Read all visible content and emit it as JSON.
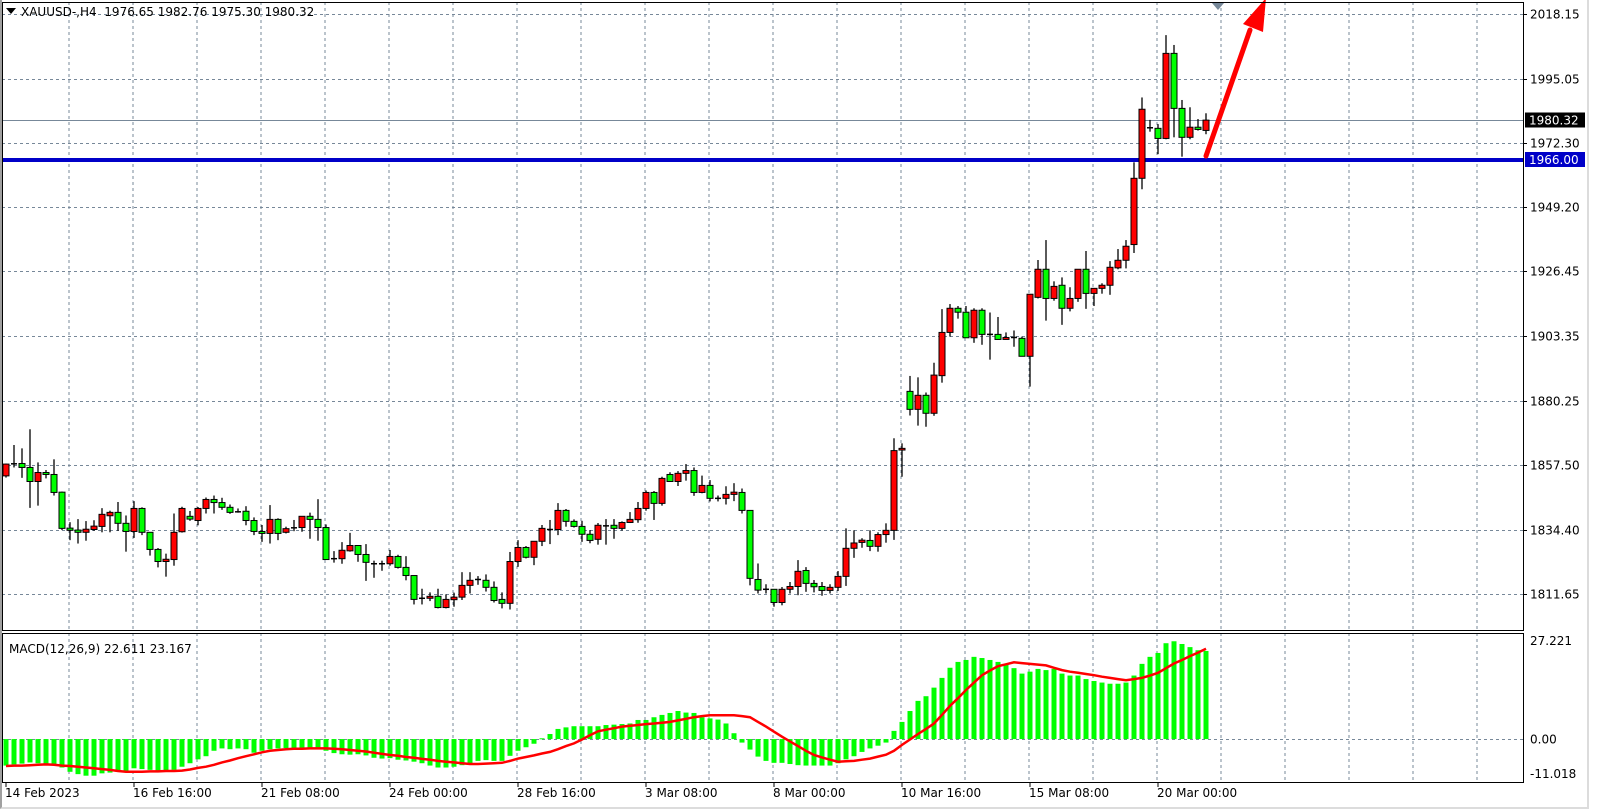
{
  "header": {
    "symbol_timeframe": "XAUUSD-,H4",
    "open": "1976.65",
    "high": "1982.76",
    "low": "1975.30",
    "close": "1980.32"
  },
  "colors": {
    "bull_candle": "#ff0000",
    "bear_candle": "#00ff00",
    "support_line": "#0000c8",
    "arrow": "#ff0000",
    "macd_histogram": "#00ff00",
    "signal_line": "#ff0000",
    "grid": "#778899"
  },
  "chart_data": [
    {
      "type": "candlestick",
      "symbol": "XAUUSD-",
      "timeframe": "H4",
      "ylim": [
        1798.7,
        2022.4
      ],
      "grid": true,
      "y_tick_labels": [
        "2018.15",
        "1995.05",
        "1972.30",
        "1949.20",
        "1926.45",
        "1903.35",
        "1880.25",
        "1857.50",
        "1834.40",
        "1811.65"
      ],
      "x_tick_labels": [
        "14 Feb 2023",
        "16 Feb 16:00",
        "21 Feb 08:00",
        "24 Feb 00:00",
        "28 Feb 16:00",
        "3 Mar 08:00",
        "8 Mar 00:00",
        "10 Mar 16:00",
        "15 Mar 08:00",
        "20 Mar 00:00"
      ],
      "current_price_label": "1980.32",
      "current_price": 1980.32,
      "horizontal_line_label": "1966.00",
      "horizontal_line": 1966.0,
      "annotation": "red arrow pointing up-right from last candle",
      "ohlc": [
        [
          1853.6,
          1858,
          1853,
          1857.8
        ],
        [
          1857.9,
          1864.6,
          1856.6,
          1857.9
        ],
        [
          1858.0,
          1863.4,
          1852.9,
          1856.6
        ],
        [
          1856.6,
          1870.2,
          1842.2,
          1851.6
        ],
        [
          1851.6,
          1858.4,
          1843,
          1854.8
        ],
        [
          1854.8,
          1855.7,
          1852.7,
          1854.1
        ],
        [
          1854.1,
          1859.5,
          1846.6,
          1847.7
        ],
        [
          1847.8,
          1848,
          1834.3,
          1834.9
        ],
        [
          1835,
          1837.1,
          1830.7,
          1834.2
        ],
        [
          1834.3,
          1838.2,
          1829.5,
          1833.5
        ],
        [
          1833.5,
          1837.5,
          1830.5,
          1834.6
        ],
        [
          1834.5,
          1837.8,
          1834,
          1835.7
        ],
        [
          1835.6,
          1842.1,
          1833.5,
          1839.9
        ],
        [
          1839.4,
          1841.2,
          1833.5,
          1840.6
        ],
        [
          1840.6,
          1844.3,
          1834,
          1836.7
        ],
        [
          1836.7,
          1839.5,
          1826.6,
          1833.8
        ],
        [
          1833.8,
          1844.6,
          1831.5,
          1842
        ],
        [
          1842,
          1842.4,
          1832.5,
          1833.5
        ],
        [
          1833.5,
          1833.5,
          1825.2,
          1827.4
        ],
        [
          1827.4,
          1827.9,
          1821,
          1823.1
        ],
        [
          1823.1,
          1825.9,
          1817.7,
          1823.9
        ],
        [
          1823.8,
          1840.2,
          1821.6,
          1833.5
        ],
        [
          1833.7,
          1842.6,
          1833.4,
          1842
        ],
        [
          1839.2,
          1841.1,
          1837.6,
          1838.2
        ],
        [
          1837.7,
          1842.5,
          1836,
          1842
        ],
        [
          1842,
          1845.9,
          1840.2,
          1845.2
        ],
        [
          1845.2,
          1846.6,
          1840.2,
          1844.1
        ],
        [
          1844.1,
          1845.8,
          1841.5,
          1842.4
        ],
        [
          1842.4,
          1843.4,
          1840.1,
          1840.6
        ],
        [
          1840.8,
          1842,
          1840.5,
          1840.8
        ],
        [
          1841,
          1842.8,
          1836,
          1837.7
        ],
        [
          1837.7,
          1838.8,
          1832.5,
          1833.8
        ],
        [
          1833.8,
          1836.1,
          1830.1,
          1833.1
        ],
        [
          1833.1,
          1843.2,
          1829.5,
          1838.1
        ],
        [
          1838.1,
          1838.5,
          1830.7,
          1833.1
        ],
        [
          1833.5,
          1835.5,
          1833.1,
          1834.8
        ],
        [
          1835.1,
          1837.9,
          1833.9,
          1835.1
        ],
        [
          1835.2,
          1839.2,
          1833.7,
          1839.2
        ],
        [
          1839.2,
          1840.5,
          1831.2,
          1838.1
        ],
        [
          1838.1,
          1845.3,
          1830.5,
          1835.2
        ],
        [
          1835.2,
          1836.3,
          1823.8,
          1823.8
        ],
        [
          1824.1,
          1826.8,
          1822.7,
          1824.1
        ],
        [
          1824.1,
          1830,
          1822.3,
          1827.1
        ],
        [
          1826.9,
          1833.3,
          1826.6,
          1828.8
        ],
        [
          1828.8,
          1828.8,
          1823,
          1825.6
        ],
        [
          1825.6,
          1829.3,
          1816.2,
          1822.8
        ],
        [
          1822.3,
          1823.4,
          1817.3,
          1822.3
        ],
        [
          1822.3,
          1823.4,
          1819.8,
          1822.3
        ],
        [
          1822.3,
          1827.2,
          1821.6,
          1824.9
        ],
        [
          1824.9,
          1825.5,
          1820.6,
          1821
        ],
        [
          1821,
          1825,
          1816.4,
          1818.1
        ],
        [
          1818.1,
          1818.1,
          1807.8,
          1809.6
        ],
        [
          1810,
          1813.4,
          1807.8,
          1810
        ],
        [
          1810,
          1812.1,
          1809,
          1810.7
        ],
        [
          1810.7,
          1813.4,
          1806.4,
          1806.7
        ],
        [
          1806.7,
          1811.4,
          1806.4,
          1809.6
        ],
        [
          1809.5,
          1812,
          1807,
          1810.4
        ],
        [
          1810.4,
          1819.3,
          1809.4,
          1814.6
        ],
        [
          1814.6,
          1819.3,
          1811.7,
          1816.4
        ],
        [
          1816.7,
          1817.9,
          1814.8,
          1816.7
        ],
        [
          1816.4,
          1818.5,
          1812.4,
          1813.9
        ],
        [
          1813.9,
          1816,
          1808.5,
          1809.2
        ],
        [
          1809.6,
          1812.1,
          1806.4,
          1808.2
        ],
        [
          1808.2,
          1826.5,
          1806,
          1823.1
        ],
        [
          1823.1,
          1830.7,
          1821.2,
          1828.1
        ],
        [
          1828.1,
          1828.6,
          1824.2,
          1824.6
        ],
        [
          1824.6,
          1830.3,
          1821.8,
          1830.3
        ],
        [
          1830.3,
          1836.1,
          1828.6,
          1834.9
        ],
        [
          1834.5,
          1837.9,
          1829.3,
          1834.5
        ],
        [
          1834.5,
          1843.9,
          1832.5,
          1841.3
        ],
        [
          1841.3,
          1841.8,
          1835.5,
          1837.4
        ],
        [
          1837.4,
          1838.1,
          1835.2,
          1835.6
        ],
        [
          1835.6,
          1837.6,
          1830.1,
          1832.8
        ],
        [
          1832.8,
          1834.3,
          1829.6,
          1830.6
        ],
        [
          1831,
          1836.8,
          1829.1,
          1836
        ],
        [
          1835.8,
          1838.2,
          1829.1,
          1835.8
        ],
        [
          1836,
          1838.2,
          1831.2,
          1834.9
        ],
        [
          1834.9,
          1837.4,
          1834.1,
          1837
        ],
        [
          1837,
          1840.7,
          1836.8,
          1838.1
        ],
        [
          1838,
          1844.3,
          1836.9,
          1842
        ],
        [
          1842,
          1848.4,
          1841.2,
          1847.7
        ],
        [
          1847.7,
          1848.2,
          1837.9,
          1843.8
        ],
        [
          1843.8,
          1853.3,
          1843,
          1852.7
        ],
        [
          1854.1,
          1854.9,
          1851.6,
          1851.6
        ],
        [
          1851.6,
          1855.3,
          1850,
          1854.5
        ],
        [
          1854.5,
          1857.8,
          1851.9,
          1855.5
        ],
        [
          1855.5,
          1856.6,
          1846.5,
          1847.7
        ],
        [
          1847.7,
          1853.7,
          1847.4,
          1850.2
        ],
        [
          1850.2,
          1852.1,
          1844.5,
          1845.6
        ],
        [
          1845.6,
          1846.6,
          1844.5,
          1845.6
        ],
        [
          1845.6,
          1849.9,
          1843.4,
          1847
        ],
        [
          1847,
          1851,
          1844.6,
          1847.8
        ],
        [
          1847.7,
          1849.1,
          1840.2,
          1841.3
        ],
        [
          1841.3,
          1841.3,
          1814.6,
          1817.1
        ],
        [
          1816.7,
          1822.4,
          1811.7,
          1812.9
        ],
        [
          1813.2,
          1815,
          1811.7,
          1813.2
        ],
        [
          1813.2,
          1813.2,
          1807,
          1808.5
        ],
        [
          1808.5,
          1814,
          1807.5,
          1813.2
        ],
        [
          1813.2,
          1815.8,
          1811.7,
          1814.2
        ],
        [
          1814.2,
          1823.6,
          1811.1,
          1819.6
        ],
        [
          1819.9,
          1821.1,
          1812.3,
          1815.3
        ],
        [
          1815.3,
          1816.5,
          1812.1,
          1814.1
        ],
        [
          1814.2,
          1815.8,
          1810.9,
          1812.8
        ],
        [
          1812.8,
          1815,
          1811.7,
          1813.9
        ],
        [
          1813.9,
          1819.7,
          1812.6,
          1817.8
        ],
        [
          1817.8,
          1834.9,
          1814.4,
          1827.8
        ],
        [
          1827.8,
          1834.2,
          1824.4,
          1829.7
        ],
        [
          1829.9,
          1831.4,
          1828,
          1830.7
        ],
        [
          1830.6,
          1834.2,
          1826.8,
          1828.5
        ],
        [
          1828.5,
          1833.5,
          1826.6,
          1832.7
        ],
        [
          1832.7,
          1836.7,
          1829.8,
          1834.2
        ],
        [
          1834.2,
          1867,
          1830.8,
          1862.6
        ],
        [
          1862.8,
          1865.2,
          1853.3,
          1863.4
        ],
        [
          1883.7,
          1889.2,
          1875.1,
          1877.3
        ],
        [
          1877.3,
          1888.7,
          1871.5,
          1882.3
        ],
        [
          1882.3,
          1883.3,
          1871.1,
          1875.9
        ],
        [
          1875.9,
          1893.9,
          1875,
          1889.5
        ],
        [
          1889.3,
          1913,
          1886.8,
          1904.7
        ],
        [
          1904.7,
          1914.8,
          1903.2,
          1913.3
        ],
        [
          1913.3,
          1914.1,
          1909.6,
          1911.9
        ],
        [
          1911.9,
          1914.1,
          1902.8,
          1902.8
        ],
        [
          1902.8,
          1913.3,
          1901,
          1912.6
        ],
        [
          1912.6,
          1913.3,
          1900.3,
          1904
        ],
        [
          1904,
          1911.8,
          1895,
          1904
        ],
        [
          1904,
          1910.2,
          1902.2,
          1902.2
        ],
        [
          1902.2,
          1904.7,
          1902.2,
          1902.9
        ],
        [
          1902.9,
          1905.4,
          1899.6,
          1902.9
        ],
        [
          1902.6,
          1903.2,
          1896.2,
          1896.2
        ],
        [
          1896.2,
          1918.3,
          1885.4,
          1918.3
        ],
        [
          1917.2,
          1930.5,
          1916.8,
          1927.2
        ],
        [
          1927.2,
          1937.6,
          1908.9,
          1916.8
        ],
        [
          1916.8,
          1922.9,
          1916,
          1921.1
        ],
        [
          1921.5,
          1924.3,
          1907.4,
          1913.3
        ],
        [
          1913.3,
          1920.8,
          1912.2,
          1916.8
        ],
        [
          1916.8,
          1927.2,
          1915.6,
          1927.2
        ],
        [
          1927.2,
          1933.7,
          1913.1,
          1918.6
        ],
        [
          1918.6,
          1920.4,
          1914.1,
          1920.4
        ],
        [
          1920.4,
          1922.2,
          1918.5,
          1921.5
        ],
        [
          1921.5,
          1930.1,
          1918.1,
          1927.9
        ],
        [
          1927.7,
          1934.4,
          1927.2,
          1930.4
        ],
        [
          1930.4,
          1937.6,
          1927.5,
          1935.4
        ],
        [
          1936,
          1965.3,
          1933,
          1959.6
        ],
        [
          1959.6,
          1988.4,
          1955.7,
          1984.2
        ],
        [
          1977.6,
          1980.4,
          1976.2,
          1977.6
        ],
        [
          1977.4,
          1978.9,
          1968.2,
          1973.8
        ],
        [
          1973.8,
          2010.6,
          1973.5,
          2004.1
        ],
        [
          2004.1,
          2007.1,
          1974.2,
          1984.5
        ],
        [
          1984.5,
          1987.5,
          1967.3,
          1974.2
        ],
        [
          1974.2,
          1984.9,
          1973.5,
          1977.8
        ],
        [
          1977.8,
          1980.7,
          1976.6,
          1977.0
        ],
        [
          1976.65,
          1982.76,
          1975.3,
          1980.32
        ]
      ]
    },
    {
      "type": "bar+line",
      "indicator_label": "MACD(12,26,9)",
      "macd_value": "22.611",
      "signal_value": "23.167",
      "ylim": [
        -11.018,
        27.221
      ],
      "y_tick_labels": [
        "27.221",
        "0.00",
        "-11.018"
      ],
      "histogram": [
        -6.8,
        -6.5,
        -6.3,
        -6.0,
        -6.2,
        -6.4,
        -6.5,
        -7.3,
        -8.4,
        -9.0,
        -9.4,
        -9.4,
        -8.8,
        -8.6,
        -8.4,
        -8.4,
        -7.5,
        -7.7,
        -7.9,
        -8.4,
        -8.4,
        -7.9,
        -7.1,
        -6.2,
        -5.2,
        -4.4,
        -3.0,
        -2.4,
        -2.6,
        -2.4,
        -2.6,
        -3.5,
        -3.0,
        -2.6,
        -2.4,
        -2.3,
        -2.3,
        -2.4,
        -2.5,
        -2.6,
        -3.0,
        -3.6,
        -3.9,
        -4.0,
        -3.9,
        -4.2,
        -4.8,
        -5.0,
        -4.9,
        -5.3,
        -5.5,
        -5.8,
        -6.2,
        -6.8,
        -7.3,
        -7.3,
        -7.1,
        -6.7,
        -6.2,
        -5.6,
        -5.4,
        -5.6,
        -5.6,
        -4.3,
        -3.0,
        -2.1,
        -1.2,
        0.2,
        1.3,
        2.6,
        3.0,
        3.3,
        3.3,
        3.3,
        3.3,
        3.6,
        3.7,
        3.85,
        4.0,
        4.9,
        4.9,
        5.6,
        6.2,
        6.7,
        7.2,
        6.8,
        6.7,
        5.6,
        5.3,
        5.0,
        4.0,
        1.5,
        -0.9,
        -2.7,
        -4.5,
        -5.6,
        -6.1,
        -6.1,
        -6.4,
        -6.7,
        -6.8,
        -6.8,
        -6.8,
        -6.8,
        -6.2,
        -5.2,
        -4.4,
        -3.3,
        -2.4,
        -1.7,
        -0.9,
        2.1,
        4.4,
        7.2,
        9.8,
        11.0,
        13.2,
        15.7,
        18.3,
        19.8,
        20.3,
        21.1,
        20.8,
        20.3,
        19.8,
        19.2,
        18.2,
        16.8,
        17.3,
        18.0,
        17.7,
        18.0,
        16.8,
        16.3,
        16.3,
        15.4,
        14.9,
        14.5,
        14.2,
        14.2,
        14.5,
        16.3,
        19.3,
        21.1,
        22.1,
        24.6,
        25.1,
        24.4,
        23.6,
        22.8,
        22.611
      ],
      "signal": [
        -6.9,
        -6.8,
        -6.8,
        -6.7,
        -6.6,
        -6.5,
        -6.6,
        -6.8,
        -6.9,
        -7.1,
        -7.3,
        -7.5,
        -7.7,
        -7.9,
        -8.2,
        -8.4,
        -8.4,
        -8.4,
        -8.3,
        -8.3,
        -8.2,
        -8.2,
        -8.1,
        -7.8,
        -7.4,
        -7.1,
        -6.6,
        -6.0,
        -5.5,
        -4.9,
        -4.4,
        -3.9,
        -3.4,
        -3.0,
        -2.8,
        -2.6,
        -2.5,
        -2.5,
        -2.4,
        -2.4,
        -2.4,
        -2.5,
        -2.6,
        -2.8,
        -3.0,
        -3.2,
        -3.5,
        -3.8,
        -4.1,
        -4.3,
        -4.6,
        -4.8,
        -5.1,
        -5.3,
        -5.6,
        -5.8,
        -6.0,
        -6.2,
        -6.4,
        -6.4,
        -6.3,
        -6.2,
        -6.1,
        -5.6,
        -5.0,
        -4.6,
        -4.2,
        -3.7,
        -3.3,
        -2.6,
        -1.8,
        -1.1,
        -0.1,
        1.0,
        2.0,
        2.4,
        2.8,
        3.2,
        3.4,
        3.6,
        3.85,
        4.0,
        4.2,
        4.4,
        4.8,
        5.2,
        5.6,
        5.9,
        6.1,
        6.1,
        6.1,
        6.1,
        5.9,
        5.6,
        4.4,
        3.2,
        1.9,
        0.6,
        -0.6,
        -1.8,
        -3.0,
        -4.1,
        -4.7,
        -5.3,
        -5.8,
        -5.7,
        -5.6,
        -5.3,
        -5.0,
        -4.5,
        -4.0,
        -3.0,
        -1.5,
        -0.1,
        1.3,
        2.6,
        4.0,
        6.2,
        8.5,
        10.5,
        12.6,
        14.5,
        16.4,
        17.6,
        18.7,
        19.2,
        19.7,
        19.5,
        19.3,
        19.1,
        18.9,
        18.3,
        17.7,
        17.3,
        17.0,
        16.7,
        16.4,
        16.0,
        15.7,
        15.4,
        15.1,
        15.4,
        15.7,
        16.3,
        17.0,
        18.2,
        19.4,
        20.3,
        21.3,
        22.2,
        23.167
      ]
    }
  ]
}
